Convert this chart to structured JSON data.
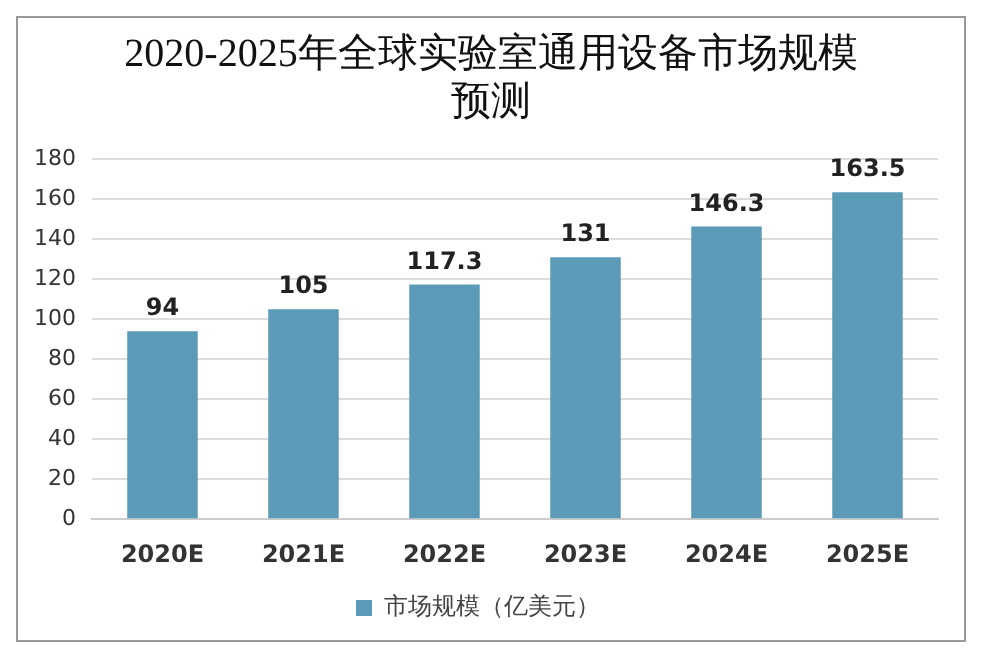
{
  "chart_data": {
    "type": "bar",
    "title": "2020-2025年全球实验室通用设备市场规模预测",
    "categories": [
      "2020E",
      "2021E",
      "2022E",
      "2023E",
      "2024E",
      "2025E"
    ],
    "series": [
      {
        "name": "市场规模（亿美元）",
        "color": "#5b9bb8",
        "values": [
          94,
          105,
          117.3,
          131,
          146.3,
          163.5
        ]
      }
    ],
    "ylim": [
      0,
      180
    ],
    "yticks": [
      0,
      20,
      40,
      60,
      80,
      100,
      120,
      140,
      160,
      180
    ],
    "grid": "y",
    "legend": "bottom",
    "data_labels": true
  }
}
